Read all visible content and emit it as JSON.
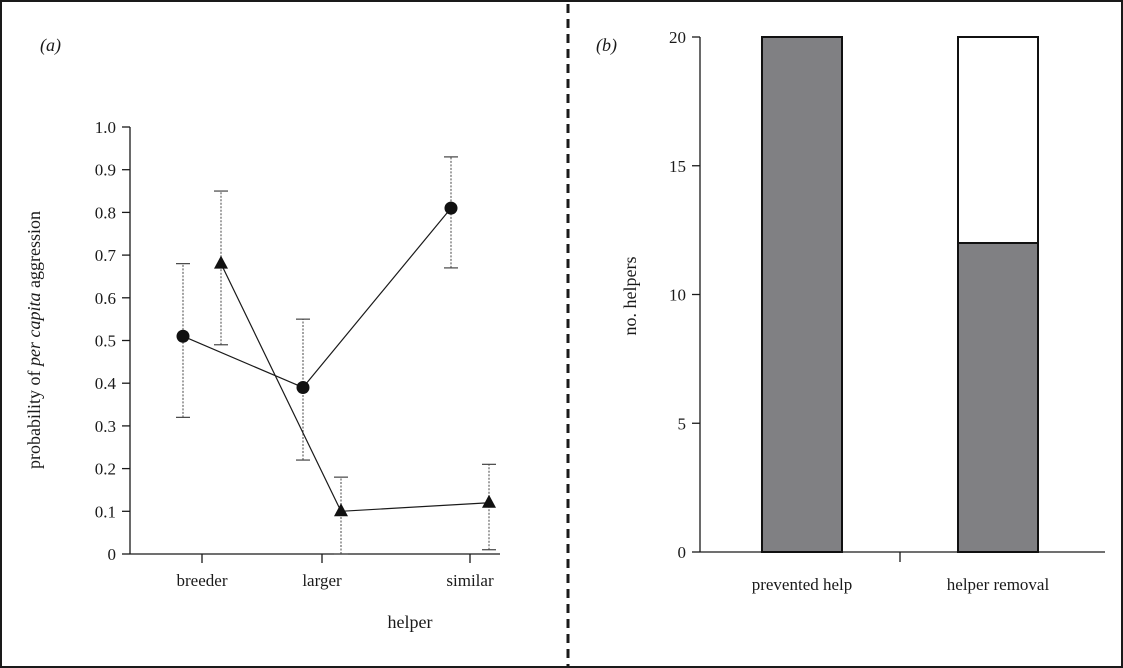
{
  "chart_data": [
    {
      "panel_label": "(a)",
      "type": "line",
      "xlabel": "helper",
      "ylabel": "probability of per capita aggression",
      "ylabel_parts": [
        "probability of ",
        "per capita",
        " aggression"
      ],
      "categories": [
        "breeder",
        "larger",
        "similar"
      ],
      "ylim": [
        0,
        1.0
      ],
      "yticks": [
        "0",
        "0.1",
        "0.2",
        "0.3",
        "0.4",
        "0.5",
        "0.6",
        "0.7",
        "0.8",
        "0.9",
        "1.0"
      ],
      "series": [
        {
          "marker": "circle",
          "values": [
            0.51,
            0.39,
            0.81
          ],
          "err_low": [
            0.32,
            0.22,
            0.67
          ],
          "err_high": [
            0.68,
            0.55,
            0.93
          ]
        },
        {
          "marker": "triangle",
          "values": [
            0.68,
            0.1,
            0.12
          ],
          "err_low": [
            0.49,
            0.0,
            0.01
          ],
          "err_high": [
            0.85,
            0.18,
            0.21
          ]
        }
      ]
    },
    {
      "panel_label": "(b)",
      "type": "bar",
      "stacked": true,
      "xlabel": "",
      "ylabel": "no. helpers",
      "categories": [
        "prevented help",
        "helper removal"
      ],
      "ylim": [
        0,
        20
      ],
      "yticks": [
        "0",
        "5",
        "10",
        "15",
        "20"
      ],
      "series": [
        {
          "color": "#808083",
          "values": [
            20,
            12
          ]
        },
        {
          "color": "#ffffff",
          "values": [
            0,
            8
          ]
        }
      ]
    }
  ]
}
